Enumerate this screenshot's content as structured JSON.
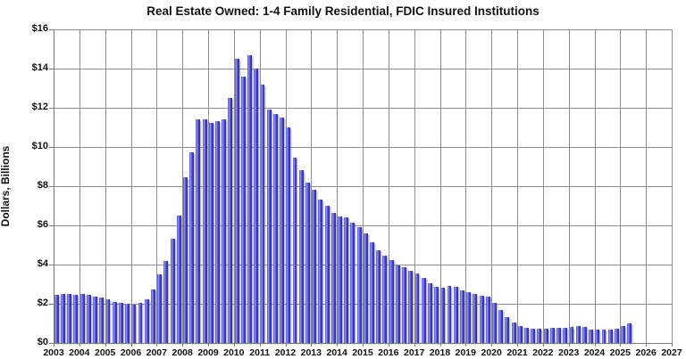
{
  "chart_data": {
    "type": "bar",
    "title": "Real Estate Owned: 1-4 Family Residential, FDIC Insured Institutions",
    "ylabel": "Dollars, Billions",
    "ylim": [
      0,
      16
    ],
    "y_tick_values": [
      0,
      2,
      4,
      6,
      8,
      10,
      12,
      14,
      16
    ],
    "y_tick_labels": [
      "$0",
      "$2",
      "$4",
      "$6",
      "$8",
      "$10",
      "$12",
      "$14",
      "$16"
    ],
    "x_tick_labels": [
      "2003",
      "2004",
      "2005",
      "2006",
      "2007",
      "2008",
      "2009",
      "2010",
      "2011",
      "2012",
      "2013",
      "2014",
      "2015",
      "2016",
      "2017",
      "2018",
      "2019",
      "2020",
      "2021",
      "2022",
      "2023",
      "2024",
      "2025",
      "2026",
      "2027"
    ],
    "grid": true,
    "legend": "none",
    "frequency": "quarterly",
    "colors": {
      "bar_fill": "#4444d2",
      "bar_edge": "#2a2aaa",
      "bar_highlight": "#9a9aee",
      "gridline": "#8f8f8f",
      "text": "#111111",
      "background": "#ffffff"
    },
    "series": [
      {
        "name": "REO, 1-4 Family Residential",
        "start": "2003Q1",
        "end": "2025Q2",
        "values": [
          2.45,
          2.5,
          2.5,
          2.45,
          2.5,
          2.45,
          2.35,
          2.3,
          2.25,
          2.1,
          2.05,
          2.0,
          1.95,
          2.05,
          2.25,
          2.75,
          3.5,
          4.2,
          5.3,
          6.5,
          8.45,
          9.75,
          11.4,
          11.4,
          11.25,
          11.3,
          11.4,
          12.5,
          14.5,
          13.6,
          14.7,
          14.0,
          13.2,
          11.9,
          11.7,
          11.5,
          11.0,
          9.45,
          8.8,
          8.2,
          7.8,
          7.3,
          7.0,
          6.65,
          6.45,
          6.4,
          6.15,
          5.9,
          5.6,
          5.15,
          4.75,
          4.45,
          4.25,
          3.95,
          3.85,
          3.7,
          3.55,
          3.3,
          3.05,
          2.85,
          2.8,
          2.9,
          2.85,
          2.7,
          2.6,
          2.5,
          2.4,
          2.35,
          2.05,
          1.7,
          1.3,
          1.05,
          0.88,
          0.76,
          0.72,
          0.72,
          0.72,
          0.76,
          0.76,
          0.78,
          0.8,
          0.85,
          0.8,
          0.68,
          0.66,
          0.68,
          0.7,
          0.75,
          0.85,
          1.0
        ]
      }
    ]
  }
}
